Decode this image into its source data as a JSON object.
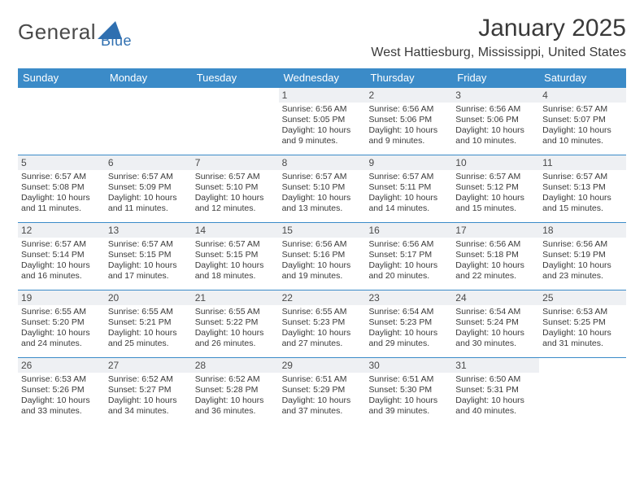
{
  "logo": {
    "text1": "General",
    "text2": "Blue",
    "color1": "#5a5a5a",
    "color2": "#2f6fb0"
  },
  "title": "January 2025",
  "location": "West Hattiesburg, Mississippi, United States",
  "colors": {
    "header_bg": "#3b8bc8",
    "header_text": "#ffffff",
    "daynum_bg": "#eef0f3",
    "row_border": "#3b8bc8",
    "body_text": "#3a3a3a"
  },
  "daysOfWeek": [
    "Sunday",
    "Monday",
    "Tuesday",
    "Wednesday",
    "Thursday",
    "Friday",
    "Saturday"
  ],
  "weeks": [
    [
      null,
      null,
      null,
      {
        "n": "1",
        "sr": "6:56 AM",
        "ss": "5:05 PM",
        "dl": "10 hours and 9 minutes."
      },
      {
        "n": "2",
        "sr": "6:56 AM",
        "ss": "5:06 PM",
        "dl": "10 hours and 9 minutes."
      },
      {
        "n": "3",
        "sr": "6:56 AM",
        "ss": "5:06 PM",
        "dl": "10 hours and 10 minutes."
      },
      {
        "n": "4",
        "sr": "6:57 AM",
        "ss": "5:07 PM",
        "dl": "10 hours and 10 minutes."
      }
    ],
    [
      {
        "n": "5",
        "sr": "6:57 AM",
        "ss": "5:08 PM",
        "dl": "10 hours and 11 minutes."
      },
      {
        "n": "6",
        "sr": "6:57 AM",
        "ss": "5:09 PM",
        "dl": "10 hours and 11 minutes."
      },
      {
        "n": "7",
        "sr": "6:57 AM",
        "ss": "5:10 PM",
        "dl": "10 hours and 12 minutes."
      },
      {
        "n": "8",
        "sr": "6:57 AM",
        "ss": "5:10 PM",
        "dl": "10 hours and 13 minutes."
      },
      {
        "n": "9",
        "sr": "6:57 AM",
        "ss": "5:11 PM",
        "dl": "10 hours and 14 minutes."
      },
      {
        "n": "10",
        "sr": "6:57 AM",
        "ss": "5:12 PM",
        "dl": "10 hours and 15 minutes."
      },
      {
        "n": "11",
        "sr": "6:57 AM",
        "ss": "5:13 PM",
        "dl": "10 hours and 15 minutes."
      }
    ],
    [
      {
        "n": "12",
        "sr": "6:57 AM",
        "ss": "5:14 PM",
        "dl": "10 hours and 16 minutes."
      },
      {
        "n": "13",
        "sr": "6:57 AM",
        "ss": "5:15 PM",
        "dl": "10 hours and 17 minutes."
      },
      {
        "n": "14",
        "sr": "6:57 AM",
        "ss": "5:15 PM",
        "dl": "10 hours and 18 minutes."
      },
      {
        "n": "15",
        "sr": "6:56 AM",
        "ss": "5:16 PM",
        "dl": "10 hours and 19 minutes."
      },
      {
        "n": "16",
        "sr": "6:56 AM",
        "ss": "5:17 PM",
        "dl": "10 hours and 20 minutes."
      },
      {
        "n": "17",
        "sr": "6:56 AM",
        "ss": "5:18 PM",
        "dl": "10 hours and 22 minutes."
      },
      {
        "n": "18",
        "sr": "6:56 AM",
        "ss": "5:19 PM",
        "dl": "10 hours and 23 minutes."
      }
    ],
    [
      {
        "n": "19",
        "sr": "6:55 AM",
        "ss": "5:20 PM",
        "dl": "10 hours and 24 minutes."
      },
      {
        "n": "20",
        "sr": "6:55 AM",
        "ss": "5:21 PM",
        "dl": "10 hours and 25 minutes."
      },
      {
        "n": "21",
        "sr": "6:55 AM",
        "ss": "5:22 PM",
        "dl": "10 hours and 26 minutes."
      },
      {
        "n": "22",
        "sr": "6:55 AM",
        "ss": "5:23 PM",
        "dl": "10 hours and 27 minutes."
      },
      {
        "n": "23",
        "sr": "6:54 AM",
        "ss": "5:23 PM",
        "dl": "10 hours and 29 minutes."
      },
      {
        "n": "24",
        "sr": "6:54 AM",
        "ss": "5:24 PM",
        "dl": "10 hours and 30 minutes."
      },
      {
        "n": "25",
        "sr": "6:53 AM",
        "ss": "5:25 PM",
        "dl": "10 hours and 31 minutes."
      }
    ],
    [
      {
        "n": "26",
        "sr": "6:53 AM",
        "ss": "5:26 PM",
        "dl": "10 hours and 33 minutes."
      },
      {
        "n": "27",
        "sr": "6:52 AM",
        "ss": "5:27 PM",
        "dl": "10 hours and 34 minutes."
      },
      {
        "n": "28",
        "sr": "6:52 AM",
        "ss": "5:28 PM",
        "dl": "10 hours and 36 minutes."
      },
      {
        "n": "29",
        "sr": "6:51 AM",
        "ss": "5:29 PM",
        "dl": "10 hours and 37 minutes."
      },
      {
        "n": "30",
        "sr": "6:51 AM",
        "ss": "5:30 PM",
        "dl": "10 hours and 39 minutes."
      },
      {
        "n": "31",
        "sr": "6:50 AM",
        "ss": "5:31 PM",
        "dl": "10 hours and 40 minutes."
      },
      null
    ]
  ],
  "labels": {
    "sunrise": "Sunrise:",
    "sunset": "Sunset:",
    "daylight": "Daylight:"
  }
}
